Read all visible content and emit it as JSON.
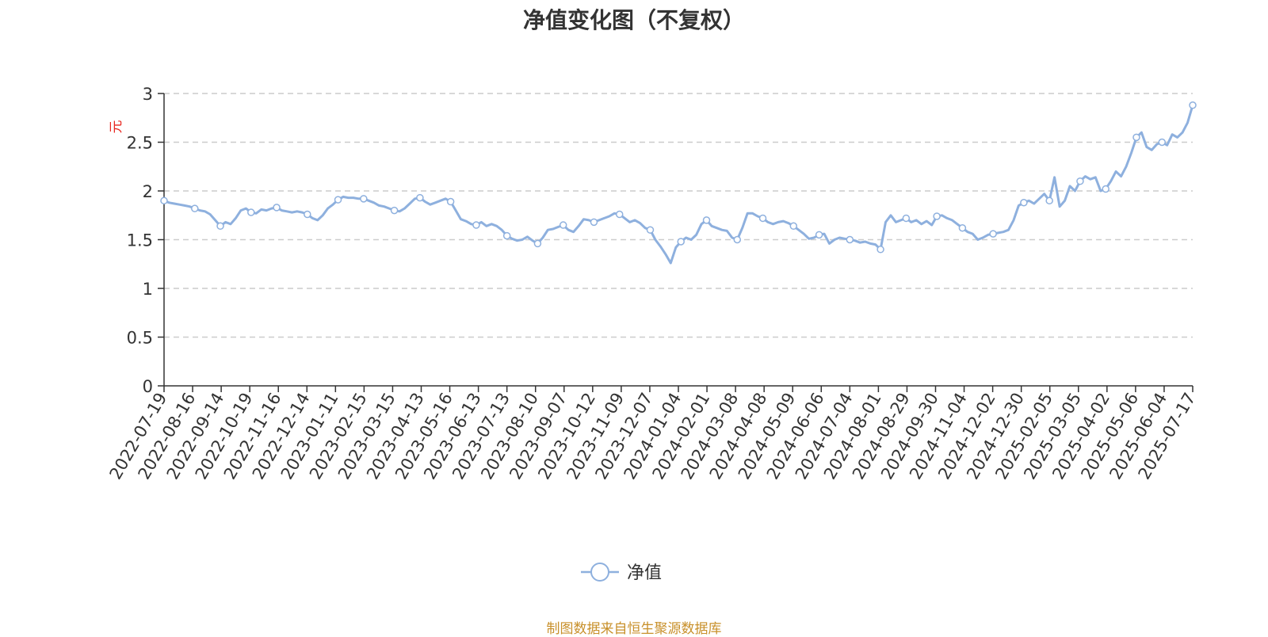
{
  "chart_data": {
    "type": "line",
    "title": "净值变化图（不复权）",
    "ylabel": "元",
    "ylim": [
      0,
      3
    ],
    "yticks": [
      0,
      0.5,
      1,
      1.5,
      2,
      2.5,
      3
    ],
    "grid": true,
    "legend_position": "bottom-center",
    "x_tick_labels": [
      "2022-07-19",
      "2022-08-16",
      "2022-09-14",
      "2022-10-19",
      "2022-11-16",
      "2022-12-14",
      "2023-01-11",
      "2023-02-15",
      "2023-03-15",
      "2023-04-13",
      "2023-05-16",
      "2023-06-13",
      "2023-07-13",
      "2023-08-10",
      "2023-09-07",
      "2023-10-12",
      "2023-11-09",
      "2023-12-07",
      "2024-01-04",
      "2024-02-01",
      "2024-03-08",
      "2024-04-08",
      "2024-05-09",
      "2024-06-06",
      "2024-07-04",
      "2024-08-01",
      "2024-08-29",
      "2024-09-30",
      "2024-11-04",
      "2024-12-02",
      "2024-12-30",
      "2025-02-05",
      "2025-03-05",
      "2025-04-02",
      "2025-05-06",
      "2025-06-04",
      "2025-07-17"
    ],
    "series": [
      {
        "name": "净值",
        "color": "#8eb0de",
        "values": [
          1.9,
          1.88,
          1.87,
          1.86,
          1.85,
          1.84,
          1.82,
          1.8,
          1.79,
          1.76,
          1.7,
          1.64,
          1.68,
          1.66,
          1.72,
          1.8,
          1.82,
          1.78,
          1.77,
          1.81,
          1.8,
          1.82,
          1.83,
          1.8,
          1.79,
          1.78,
          1.79,
          1.78,
          1.76,
          1.72,
          1.7,
          1.75,
          1.82,
          1.86,
          1.91,
          1.94,
          1.93,
          1.93,
          1.92,
          1.92,
          1.9,
          1.88,
          1.85,
          1.84,
          1.82,
          1.8,
          1.79,
          1.82,
          1.87,
          1.92,
          1.93,
          1.89,
          1.86,
          1.88,
          1.9,
          1.92,
          1.89,
          1.8,
          1.71,
          1.69,
          1.66,
          1.65,
          1.68,
          1.64,
          1.66,
          1.64,
          1.6,
          1.54,
          1.51,
          1.49,
          1.5,
          1.53,
          1.49,
          1.46,
          1.52,
          1.6,
          1.61,
          1.63,
          1.65,
          1.6,
          1.58,
          1.64,
          1.71,
          1.7,
          1.68,
          1.7,
          1.72,
          1.74,
          1.77,
          1.76,
          1.72,
          1.68,
          1.7,
          1.67,
          1.62,
          1.6,
          1.5,
          1.43,
          1.35,
          1.26,
          1.42,
          1.48,
          1.52,
          1.5,
          1.55,
          1.66,
          1.7,
          1.64,
          1.62,
          1.6,
          1.59,
          1.52,
          1.5,
          1.62,
          1.77,
          1.77,
          1.74,
          1.72,
          1.68,
          1.66,
          1.68,
          1.69,
          1.67,
          1.64,
          1.6,
          1.56,
          1.51,
          1.52,
          1.55,
          1.56,
          1.46,
          1.5,
          1.52,
          1.51,
          1.5,
          1.49,
          1.47,
          1.48,
          1.46,
          1.45,
          1.4,
          1.68,
          1.75,
          1.68,
          1.7,
          1.72,
          1.68,
          1.7,
          1.66,
          1.69,
          1.65,
          1.74,
          1.75,
          1.72,
          1.7,
          1.66,
          1.62,
          1.58,
          1.56,
          1.5,
          1.52,
          1.55,
          1.56,
          1.57,
          1.58,
          1.6,
          1.7,
          1.85,
          1.88,
          1.9,
          1.87,
          1.92,
          1.97,
          1.9,
          2.14,
          1.84,
          1.9,
          2.05,
          2.0,
          2.1,
          2.15,
          2.12,
          2.14,
          2.0,
          2.02,
          2.1,
          2.2,
          2.15,
          2.25,
          2.39,
          2.55,
          2.6,
          2.45,
          2.42,
          2.48,
          2.5,
          2.47,
          2.58,
          2.55,
          2.6,
          2.7,
          2.88
        ]
      }
    ]
  },
  "legend": {
    "label": "净值"
  },
  "source_note": "制图数据来自恒生聚源数据库"
}
